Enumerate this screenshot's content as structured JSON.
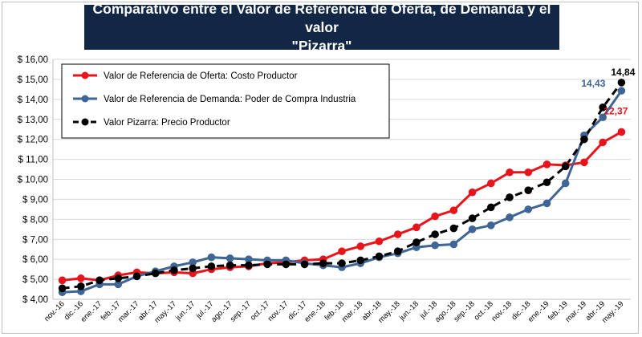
{
  "chart_data": {
    "type": "line",
    "title": "Comparativo entre el Valor de Referencia de Oferta, de Demanda y el valor\n\"Pizarra\"",
    "ylim": [
      4,
      16
    ],
    "yticks": [
      "$ 4,00",
      "$ 5,00",
      "$ 6,00",
      "$ 7,00",
      "$ 8,00",
      "$ 9,00",
      "$ 10,00",
      "$ 11,00",
      "$ 12,00",
      "$ 13,00",
      "$ 14,00",
      "$ 15,00",
      "$ 16,00"
    ],
    "ytick_values": [
      4,
      5,
      6,
      7,
      8,
      9,
      10,
      11,
      12,
      13,
      14,
      15,
      16
    ],
    "categories": [
      "nov.-16",
      "dic.-16",
      "ene.-17",
      "feb.-17",
      "mar.-17",
      "abr.-17",
      "may.-17",
      "jun.-17",
      "jul.-17",
      "ago.-17",
      "sep.-17",
      "oct.-17",
      "nov.-17",
      "dic.-17",
      "ene.-18",
      "feb.-18",
      "mar.-18",
      "abr.-18",
      "may.-18",
      "jun.-18",
      "jul.-18",
      "ago.-18",
      "sep.-18",
      "oct.-18",
      "nov.-18",
      "dic.-18",
      "ene.-19",
      "feb.-19",
      "mar.-19",
      "abr.-19",
      "may.-19"
    ],
    "grid": true,
    "legend_position": "top-left",
    "series": [
      {
        "name": "Valor de Referencia de Oferta: Costo Productor",
        "color": "#e8141b",
        "style": "solid",
        "values": [
          4.95,
          5.05,
          4.95,
          5.2,
          5.35,
          5.3,
          5.35,
          5.3,
          5.5,
          5.6,
          5.65,
          5.8,
          5.85,
          5.95,
          6.0,
          6.4,
          6.65,
          6.9,
          7.25,
          7.6,
          8.15,
          8.45,
          9.35,
          9.8,
          10.35,
          10.35,
          10.75,
          10.7,
          10.85,
          11.85,
          12.37
        ],
        "label_last": "12,37"
      },
      {
        "name": "Valor de Referencia de Demanda: Poder de Compra Industria",
        "color": "#3e6593",
        "style": "solid",
        "values": [
          4.35,
          4.4,
          4.75,
          4.75,
          5.15,
          5.4,
          5.65,
          5.85,
          6.1,
          6.05,
          6.0,
          5.95,
          5.95,
          5.8,
          5.7,
          5.6,
          5.8,
          6.1,
          6.3,
          6.6,
          6.7,
          6.75,
          7.5,
          7.7,
          8.1,
          8.5,
          8.8,
          9.8,
          12.2,
          13.1,
          14.43
        ],
        "label_last": "14,43"
      },
      {
        "name": "Valor Pizarra: Precio Productor",
        "color": "#000000",
        "style": "dashed",
        "values": [
          4.55,
          4.65,
          4.95,
          5.05,
          5.15,
          5.3,
          5.45,
          5.55,
          5.65,
          5.7,
          5.7,
          5.75,
          5.75,
          5.75,
          5.8,
          5.8,
          5.95,
          6.15,
          6.4,
          6.85,
          7.25,
          7.55,
          8.05,
          8.6,
          9.1,
          9.45,
          9.85,
          10.65,
          12.0,
          13.6,
          14.84
        ],
        "label_last": "14,84"
      }
    ]
  }
}
